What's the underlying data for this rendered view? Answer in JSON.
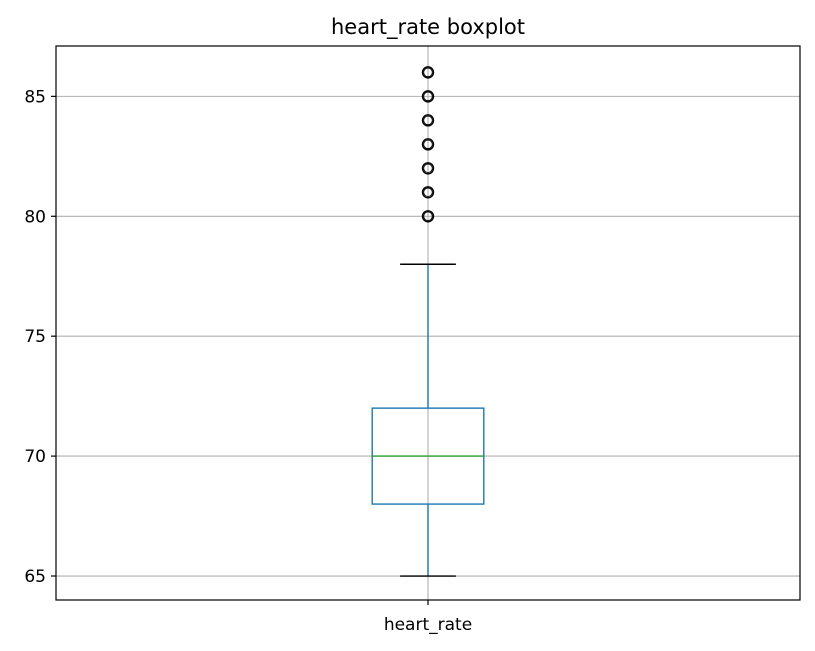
{
  "chart_data": {
    "type": "boxplot",
    "title": "heart_rate boxplot",
    "xlabel": "",
    "ylabel": "",
    "categories": [
      "heart_rate"
    ],
    "ylim": [
      64,
      87.1
    ],
    "yticks": [
      65,
      70,
      75,
      80,
      85
    ],
    "grid": true,
    "colors": {
      "box": "#1f77b4",
      "median": "#2ca02c",
      "whisker": "#1f77b4",
      "cap": "#000000",
      "flier": "#000000",
      "grid": "#b0b0b0"
    },
    "boxes": [
      {
        "name": "heart_rate",
        "whisker_low": 65,
        "q1": 68,
        "median": 70,
        "q3": 72,
        "whisker_high": 78,
        "outliers": [
          80,
          81,
          82,
          83,
          84,
          85,
          86
        ]
      }
    ]
  }
}
